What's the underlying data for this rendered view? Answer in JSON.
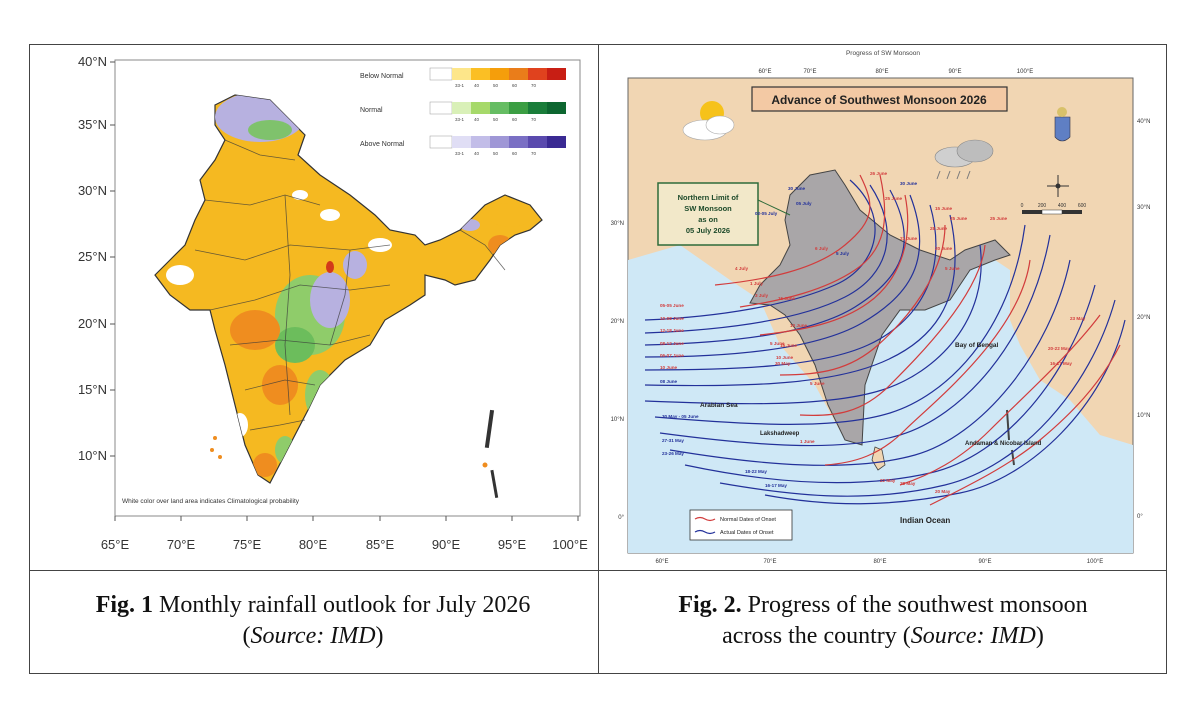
{
  "fig1": {
    "lat_labels": [
      "40°N",
      "35°N",
      "30°N",
      "25°N",
      "20°N",
      "15°N",
      "10°N"
    ],
    "lon_labels": [
      "65°E",
      "70°E",
      "75°E",
      "80°E",
      "85°E",
      "90°E",
      "95°E",
      "100°E"
    ],
    "legend": {
      "below_normal": "Below Normal",
      "normal": "Normal",
      "above_normal": "Above Normal",
      "bins": [
        "33-1",
        "40",
        "50",
        "60",
        "70"
      ],
      "colors": {
        "below": [
          "#fde68a",
          "#fbbf24",
          "#f59e0b",
          "#ea7d1a",
          "#e0421e",
          "#c81e14"
        ],
        "normal": [
          "#d9f0b8",
          "#a6d96a",
          "#66bd63",
          "#3b9e43",
          "#1a7d3a",
          "#0d6630"
        ],
        "above": [
          "#e0def5",
          "#c2bde8",
          "#9f97d6",
          "#7a6fc4",
          "#5a4aae",
          "#3a2a93"
        ]
      }
    },
    "note": "White color over land area indicates Climatological probability"
  },
  "fig2": {
    "top_title": "Progress of SW Monsoon",
    "title": "Advance of Southwest Monsoon 2026",
    "nlm_box": [
      "Northern Limit of",
      "SW Monsoon",
      "as on",
      "05 July 2026"
    ],
    "top_lon_labels": [
      "60°E",
      "70°E",
      "80°E",
      "90°E",
      "100°E"
    ],
    "bottom_lon_labels": [
      "60°E",
      "70°E",
      "80°E",
      "90°E",
      "100°E"
    ],
    "left_lat_labels": [
      "30°N",
      "20°N",
      "10°N",
      "0°"
    ],
    "right_lat_labels": [
      "40°N",
      "30°N",
      "20°N",
      "10°N",
      "0°"
    ],
    "dates": [
      "26 June",
      "30 June",
      "30 June",
      "25 June",
      "02-05 July",
      "05 July",
      "4 July",
      "1 July",
      "3 July",
      "6 July",
      "5 July",
      "15 June",
      "5 June",
      "10 June",
      "28 June",
      "25 June",
      "21 June",
      "20 June",
      "05-05 June",
      "10-08 June",
      "12-18 June",
      "08-12 June",
      "06-07 June",
      "10 June",
      "08 June",
      "30 May - 05 June",
      "27-31 May",
      "23-26 May",
      "18-22 May",
      "16-17 May",
      "30 May",
      "15 June",
      "10 June",
      "1 June",
      "5 June",
      "22 May",
      "28 May",
      "20 May",
      "23 May",
      "20-22 May",
      "16-17 May",
      "25 June",
      "15 June",
      "5 June"
    ],
    "place_labels": {
      "arabian_sea": "Arabian Sea",
      "bay_of_bengal": "Bay of Bengal",
      "lakshadweep": "Lakshadweep",
      "andaman": "Andaman & Nicobar Island",
      "indian_ocean": "Indian Ocean"
    },
    "legend": {
      "normal": "Normal Dates of Onset",
      "actual": "Actual Dates of Onset",
      "normal_color": "#d23c3c",
      "actual_color": "#23319a"
    },
    "scale_labels": [
      "0",
      "200",
      "400",
      "600"
    ]
  },
  "captions": {
    "fig1_label": "Fig. 1",
    "fig1_text": " Monthly rainfall outlook for July 2026",
    "fig1_src_open": "(",
    "fig1_src": "Source: IMD",
    "fig1_src_close": ")",
    "fig2_label": "Fig. 2.",
    "fig2_text1": " Progress of the southwest monsoon",
    "fig2_text2": "across the country ",
    "fig2_src_open": "(",
    "fig2_src": "Source: IMD",
    "fig2_src_close": ")"
  }
}
